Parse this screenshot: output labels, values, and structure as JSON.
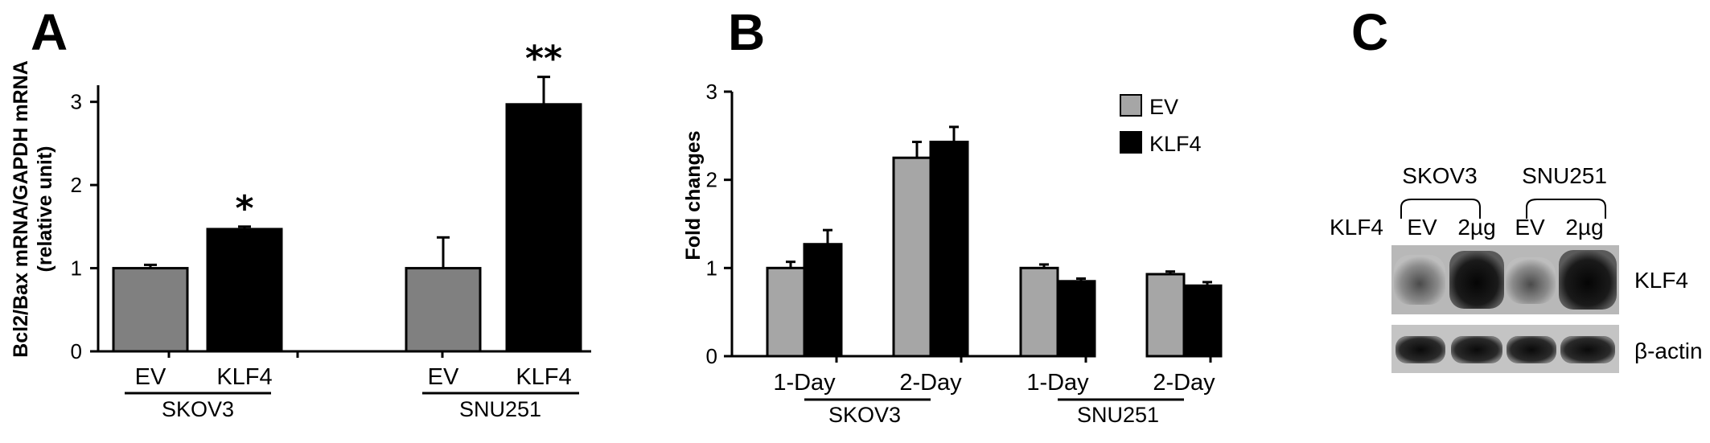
{
  "panels": {
    "A": {
      "letter": "A"
    },
    "B": {
      "letter": "B"
    },
    "C": {
      "letter": "C"
    }
  },
  "chart_data": [
    {
      "type": "bar",
      "panel": "A",
      "ylabel_line1": "Bcl2/Bax mRNA/GAPDH mRNA",
      "ylabel_line2": "(relative unit)",
      "ylim": [
        0,
        3
      ],
      "yticks": [
        "0",
        "1",
        "2",
        "3"
      ],
      "categories": [
        "EV",
        "KLF4",
        "EV",
        "KLF4"
      ],
      "groups": [
        "SKOV3",
        "SNU251"
      ],
      "values": [
        1.0,
        1.47,
        1.0,
        2.97
      ],
      "errors": [
        0.04,
        0.03,
        0.37,
        0.33
      ],
      "significance": [
        "",
        "*",
        "",
        "**"
      ],
      "colors": [
        "#808080",
        "#000000",
        "#808080",
        "#000000"
      ]
    },
    {
      "type": "bar",
      "panel": "B",
      "ylabel": "Fold changes",
      "ylim": [
        0,
        3
      ],
      "yticks": [
        "0",
        "1",
        "2",
        "3"
      ],
      "categories": [
        "1-Day",
        "2-Day",
        "1-Day",
        "2-Day"
      ],
      "groups": [
        "SKOV3",
        "SNU251"
      ],
      "legend_position": "top-right",
      "series": [
        {
          "name": "EV",
          "color": "#a6a6a6",
          "values": [
            1.0,
            2.25,
            1.0,
            0.93
          ],
          "errors": [
            0.07,
            0.18,
            0.04,
            0.03
          ]
        },
        {
          "name": "KLF4",
          "color": "#000000",
          "values": [
            1.27,
            2.43,
            0.85,
            0.8
          ],
          "errors": [
            0.16,
            0.17,
            0.03,
            0.04
          ]
        }
      ]
    }
  ],
  "blot": {
    "row_label": "KLF4",
    "groups": [
      "SKOV3",
      "SNU251"
    ],
    "lanes": [
      "EV",
      "2µg",
      "EV",
      "2µg"
    ],
    "bands": [
      "KLF4",
      "β-actin"
    ]
  }
}
